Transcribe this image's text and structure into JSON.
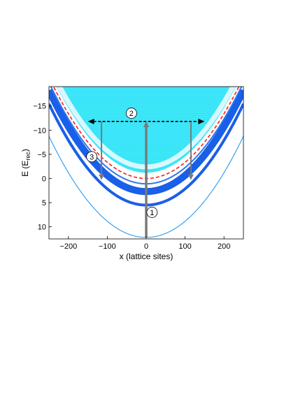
{
  "chart_data": {
    "type": "heatmap",
    "title": "",
    "xlabel": "x (lattice sites)",
    "ylabel_main": "E (E",
    "ylabel_sub": "rec",
    "ylabel_close": ")",
    "xlim": [
      -250,
      250
    ],
    "ylim": [
      -19,
      12.5
    ],
    "y_inverted": true,
    "grid": false,
    "x_ticks": [
      -200,
      -100,
      0,
      100,
      200
    ],
    "x_tick_labels": [
      "−200",
      "−100",
      "0",
      "100",
      "200"
    ],
    "y_ticks": [
      -15,
      -10,
      -5,
      0,
      5,
      10
    ],
    "y_tick_labels": [
      "−15",
      "−10",
      "−5",
      "0",
      "5",
      "10"
    ],
    "colors": {
      "band_fill": "#3de8f8",
      "band_light": "#d8f8ff",
      "band_dark": "#1a5fe8",
      "band_thin": "#39a0f0",
      "band_edge": "#2a7af0",
      "potential_line": "#ff1a1a",
      "arrow_vertical": "#7a7a7a",
      "arrow_horizontal": "#000000"
    },
    "bands": [
      {
        "name": "lowest",
        "curvature": 0.000335,
        "offset": 12.2
      },
      {
        "name": "second",
        "curvature": 0.000335,
        "offset": 5.5
      },
      {
        "name": "third",
        "curvature": 0.000335,
        "offset": 2.7
      },
      {
        "name": "potential",
        "curvature": 0.000335,
        "offset": 0.0
      },
      {
        "name": "continuum_top",
        "curvature": 0.000335,
        "offset": -1.2
      }
    ],
    "transitions": [
      {
        "label": "1",
        "type": "vertical_up",
        "x": 0,
        "y_from": 12.2,
        "y_to": -11.8,
        "label_at": [
          15,
          7.0
        ]
      },
      {
        "label": "2",
        "type": "horizontal_out",
        "y": -11.8,
        "x_from": 0,
        "x_to_left": -150,
        "x_to_right": 150,
        "label_at": [
          -38,
          -13.5
        ]
      },
      {
        "label": "3",
        "type": "vertical_down",
        "x_left": -115,
        "x_right": 115,
        "y_from": -11.8,
        "y_to": 0.3,
        "label_at": [
          -140,
          -4.5
        ]
      }
    ]
  }
}
